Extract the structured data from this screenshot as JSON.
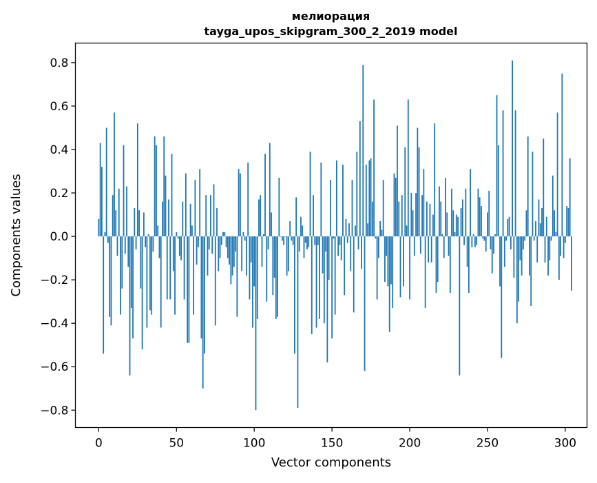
{
  "chart_data": {
    "type": "bar",
    "title": "мелиорация",
    "subtitle": "tayga_upos_skipgram_300_2_2019 model",
    "xlabel": "Vector components",
    "ylabel": "Components values",
    "xlim": [
      -15,
      314
    ],
    "ylim": [
      -0.88,
      0.89
    ],
    "xticks": [
      0,
      50,
      100,
      150,
      200,
      250,
      300
    ],
    "xtick_labels": [
      "0",
      "50",
      "100",
      "150",
      "200",
      "250",
      "300"
    ],
    "yticks": [
      -0.8,
      -0.6,
      -0.4,
      -0.2,
      0.0,
      0.2,
      0.4,
      0.6,
      0.8
    ],
    "ytick_labels": [
      "−0.8",
      "−0.6",
      "−0.4",
      "−0.2",
      "0.0",
      "0.2",
      "0.4",
      "0.6",
      "0.8"
    ],
    "grid": false,
    "bar_color": "#1f77b4",
    "x_start": 0,
    "values": [
      0.08,
      0.43,
      0.32,
      -0.54,
      0.02,
      0.5,
      -0.03,
      -0.37,
      -0.41,
      0.19,
      0.57,
      0.12,
      -0.09,
      0.22,
      -0.36,
      -0.24,
      0.42,
      -0.08,
      0.23,
      -0.14,
      -0.64,
      -0.33,
      -0.47,
      0.13,
      -0.06,
      0.52,
      0.12,
      -0.24,
      -0.52,
      0.11,
      -0.05,
      -0.42,
      0.01,
      -0.34,
      -0.36,
      -0.07,
      0.46,
      0.42,
      0.05,
      -0.1,
      -0.42,
      0.16,
      0.46,
      0.28,
      -0.29,
      0.17,
      -0.29,
      0.38,
      -0.16,
      -0.36,
      0.02,
      -0.01,
      -0.09,
      -0.11,
      0.16,
      -0.29,
      0.29,
      -0.49,
      -0.49,
      0.15,
      0.05,
      -0.36,
      0.26,
      -0.13,
      -0.05,
      0.31,
      -0.47,
      -0.7,
      -0.54,
      0.19,
      -0.18,
      -0.06,
      0.19,
      -0.08,
      0.24,
      -0.41,
      0.13,
      -0.16,
      -0.1,
      -0.04,
      0.02,
      0.02,
      -0.05,
      -0.1,
      -0.13,
      -0.22,
      -0.18,
      -0.14,
      -0.07,
      -0.37,
      0.31,
      0.29,
      -0.16,
      0.02,
      -0.02,
      -0.18,
      0.34,
      -0.29,
      -0.12,
      -0.42,
      -0.23,
      -0.8,
      -0.38,
      0.17,
      0.19,
      -0.14,
      0.01,
      0.38,
      -0.3,
      -0.06,
      0.43,
      0.11,
      -0.27,
      -0.19,
      -0.38,
      -0.37,
      0.27,
      0.0,
      -0.02,
      -0.04,
      0.0,
      -0.18,
      -0.16,
      0.07,
      -0.02,
      -0.04,
      -0.54,
      0.18,
      -0.79,
      -0.07,
      0.09,
      0.05,
      -0.1,
      -0.03,
      -0.06,
      -0.05,
      0.39,
      -0.45,
      0.19,
      -0.04,
      -0.42,
      -0.04,
      -0.38,
      0.34,
      -0.17,
      -0.4,
      -0.07,
      -0.58,
      -0.2,
      0.26,
      -0.47,
      -0.01,
      -0.36,
      0.35,
      -0.09,
      -0.04,
      -0.11,
      0.33,
      -0.27,
      0.08,
      -0.03,
      0.06,
      -0.16,
      0.26,
      -0.35,
      0.05,
      0.39,
      -0.06,
      0.53,
      -0.15,
      0.79,
      -0.62,
      0.33,
      0.06,
      0.35,
      0.36,
      0.16,
      0.63,
      -0.01,
      -0.29,
      -0.1,
      0.07,
      0.03,
      0.26,
      -0.21,
      -0.09,
      -0.23,
      -0.44,
      -0.22,
      -0.33,
      0.29,
      0.27,
      0.51,
      0.16,
      -0.28,
      0.19,
      -0.23,
      0.41,
      0.05,
      0.63,
      -0.29,
      0.2,
      0.12,
      -0.09,
      0.2,
      0.5,
      0.41,
      -0.08,
      0.19,
      0.31,
      -0.33,
      0.16,
      -0.12,
      0.15,
      -0.12,
      0.1,
      0.52,
      -0.26,
      -0.21,
      0.23,
      0.16,
      0.01,
      -0.1,
      0.27,
      0.11,
      -0.09,
      -0.26,
      0.22,
      0.12,
      0.02,
      0.1,
      0.09,
      -0.64,
      0.13,
      0.17,
      -0.04,
      0.22,
      -0.14,
      -0.26,
      0.31,
      -0.05,
      0.01,
      -0.05,
      -0.04,
      0.22,
      0.18,
      0.14,
      -0.01,
      -0.02,
      -0.07,
      0.11,
      0.21,
      -0.06,
      -0.17,
      -0.08,
      0.01,
      0.65,
      0.42,
      -0.23,
      -0.56,
      0.58,
      -0.14,
      -0.02,
      0.08,
      0.09,
      -0.06,
      0.81,
      -0.19,
      0.58,
      -0.4,
      -0.3,
      -0.11,
      -0.18,
      -0.06,
      -0.02,
      0.12,
      0.46,
      -0.18,
      -0.32,
      0.39,
      -0.02,
      0.07,
      -0.12,
      0.17,
      0.06,
      0.13,
      0.45,
      -0.12,
      0.09,
      -0.18,
      -0.11,
      -0.02,
      0.28,
      0.12,
      0.02,
      0.57,
      -0.2,
      -0.09,
      0.75,
      -0.1,
      -0.03,
      0.14,
      0.13,
      0.36,
      -0.25
    ]
  }
}
